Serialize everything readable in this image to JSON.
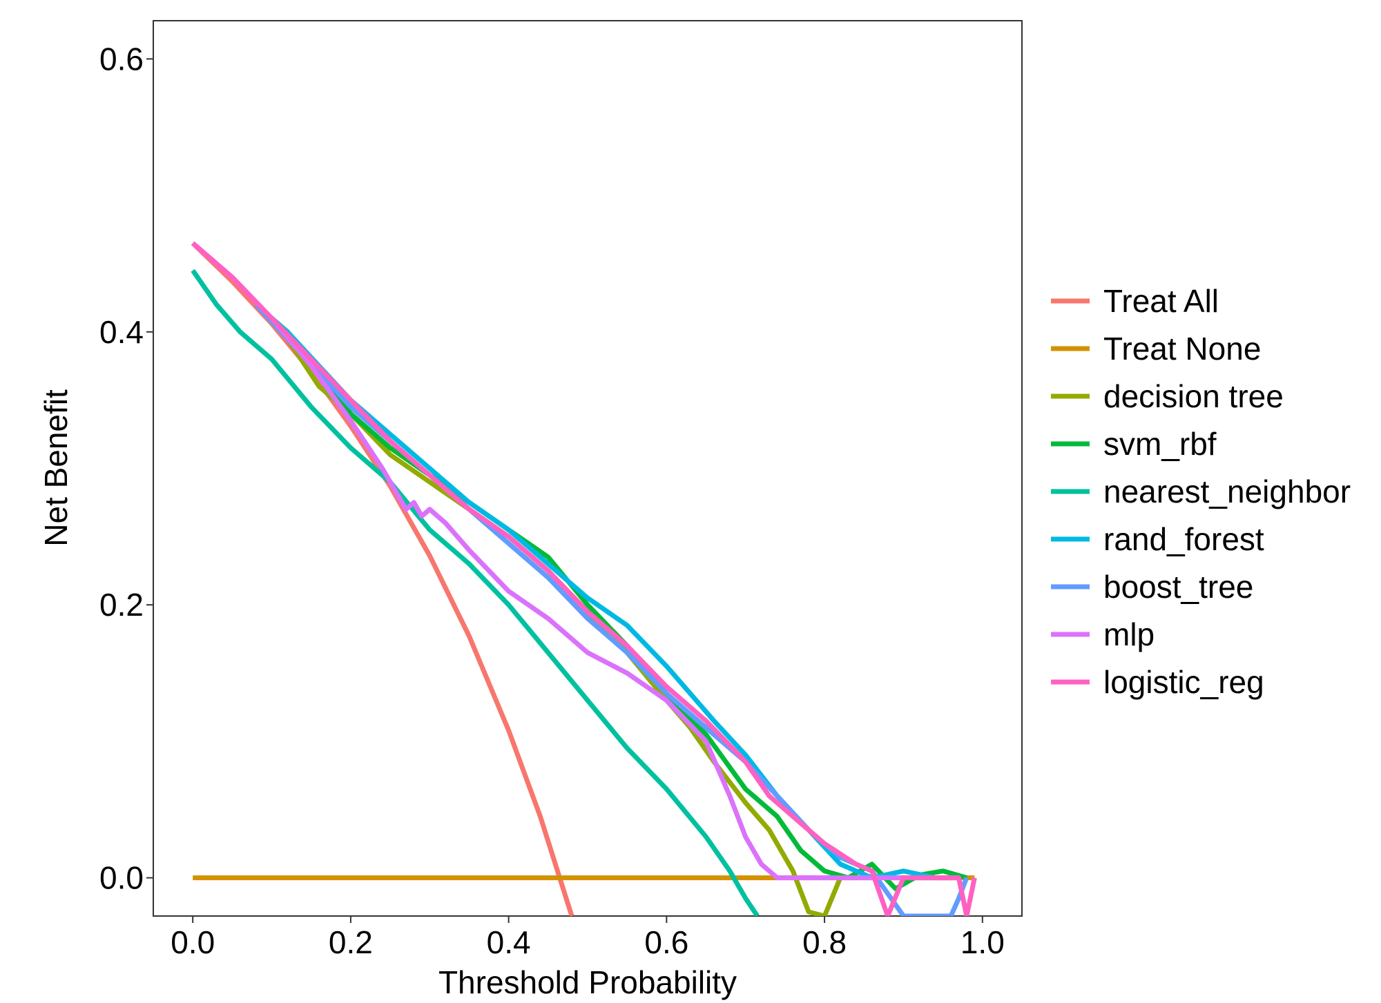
{
  "chart_data": {
    "type": "line",
    "title": "",
    "xlabel": "Threshold Probability",
    "ylabel": "Net Benefit",
    "xlim": [
      -0.05,
      1.05
    ],
    "ylim": [
      -0.028,
      0.628
    ],
    "xticks": [
      0.0,
      0.2,
      0.4,
      0.6,
      0.8,
      1.0
    ],
    "xtick_labels": [
      "0.0",
      "0.2",
      "0.4",
      "0.6",
      "0.8",
      "1.0"
    ],
    "yticks": [
      0.0,
      0.2,
      0.4,
      0.6
    ],
    "ytick_labels": [
      "0.0",
      "0.2",
      "0.4",
      "0.6"
    ],
    "grid": false,
    "legend_position": "right",
    "series": [
      {
        "name": "Treat All",
        "color": "#F8766D",
        "x": [
          0,
          0.05,
          0.1,
          0.15,
          0.2,
          0.25,
          0.3,
          0.35,
          0.4,
          0.44,
          0.48
        ],
        "y": [
          0.465,
          0.437,
          0.406,
          0.371,
          0.331,
          0.287,
          0.236,
          0.177,
          0.108,
          0.045,
          -0.028
        ]
      },
      {
        "name": "Treat None",
        "color": "#D39200",
        "x": [
          0,
          0.99
        ],
        "y": [
          0,
          0
        ]
      },
      {
        "name": "decision tree",
        "color": "#93AA00",
        "x": [
          0.08,
          0.12,
          0.16,
          0.2,
          0.25,
          0.3,
          0.35,
          0.4,
          0.45,
          0.5,
          0.55,
          0.6,
          0.63,
          0.66,
          0.7,
          0.73,
          0.76,
          0.78,
          0.8,
          0.82
        ],
        "y": [
          0.42,
          0.395,
          0.36,
          0.34,
          0.31,
          0.29,
          0.27,
          0.25,
          0.225,
          0.195,
          0.165,
          0.13,
          0.11,
          0.085,
          0.055,
          0.035,
          0.005,
          -0.025,
          -0.028,
          0.0
        ]
      },
      {
        "name": "svm_rbf",
        "color": "#00BA38",
        "x": [
          0.08,
          0.12,
          0.16,
          0.2,
          0.25,
          0.3,
          0.35,
          0.4,
          0.45,
          0.5,
          0.55,
          0.6,
          0.65,
          0.7,
          0.74,
          0.77,
          0.8,
          0.83,
          0.86,
          0.89,
          0.92,
          0.95,
          0.98
        ],
        "y": [
          0.42,
          0.4,
          0.37,
          0.34,
          0.315,
          0.295,
          0.275,
          0.255,
          0.235,
          0.2,
          0.17,
          0.135,
          0.105,
          0.065,
          0.045,
          0.02,
          0.005,
          0.0,
          0.01,
          -0.008,
          0.002,
          0.005,
          0.0
        ]
      },
      {
        "name": "nearest_neighbor",
        "color": "#00C19F",
        "x": [
          0,
          0.03,
          0.06,
          0.1,
          0.15,
          0.2,
          0.25,
          0.3,
          0.35,
          0.4,
          0.45,
          0.5,
          0.55,
          0.6,
          0.65,
          0.68,
          0.7,
          0.715
        ],
        "y": [
          0.445,
          0.42,
          0.4,
          0.38,
          0.345,
          0.315,
          0.29,
          0.255,
          0.23,
          0.2,
          0.165,
          0.13,
          0.095,
          0.065,
          0.03,
          0.005,
          -0.015,
          -0.028
        ]
      },
      {
        "name": "rand_forest",
        "color": "#00B9E3",
        "x": [
          0.08,
          0.12,
          0.16,
          0.2,
          0.25,
          0.3,
          0.35,
          0.4,
          0.45,
          0.5,
          0.55,
          0.6,
          0.63,
          0.66,
          0.7,
          0.74,
          0.78,
          0.82,
          0.86,
          0.9,
          0.94,
          0.96
        ],
        "y": [
          0.42,
          0.4,
          0.375,
          0.35,
          0.325,
          0.3,
          0.275,
          0.255,
          0.23,
          0.205,
          0.185,
          0.155,
          0.135,
          0.115,
          0.09,
          0.06,
          0.035,
          0.01,
          0.0,
          0.005,
          0.0,
          0.0
        ]
      },
      {
        "name": "boost_tree",
        "color": "#619CFF",
        "x": [
          0.08,
          0.12,
          0.16,
          0.2,
          0.25,
          0.3,
          0.35,
          0.4,
          0.45,
          0.5,
          0.55,
          0.6,
          0.65,
          0.7,
          0.74,
          0.78,
          0.82,
          0.86,
          0.9,
          0.94,
          0.96,
          0.97,
          0.98
        ],
        "y": [
          0.42,
          0.395,
          0.37,
          0.345,
          0.32,
          0.295,
          0.27,
          0.245,
          0.22,
          0.19,
          0.165,
          0.135,
          0.11,
          0.085,
          0.06,
          0.035,
          0.015,
          0.005,
          -0.028,
          -0.028,
          -0.028,
          -0.015,
          0.0
        ]
      },
      {
        "name": "mlp",
        "color": "#DB72FB",
        "x": [
          0.0,
          0.05,
          0.1,
          0.15,
          0.2,
          0.24,
          0.27,
          0.28,
          0.29,
          0.3,
          0.32,
          0.35,
          0.4,
          0.45,
          0.5,
          0.55,
          0.6,
          0.65,
          0.68,
          0.7,
          0.72,
          0.74,
          0.8,
          0.9,
          0.97
        ],
        "y": [
          0.465,
          0.44,
          0.41,
          0.375,
          0.335,
          0.3,
          0.27,
          0.275,
          0.265,
          0.27,
          0.26,
          0.24,
          0.21,
          0.19,
          0.165,
          0.15,
          0.13,
          0.1,
          0.06,
          0.03,
          0.01,
          0.0,
          0.0,
          0.0,
          0.0
        ]
      },
      {
        "name": "logistic_reg",
        "color": "#FF61C3",
        "x": [
          0,
          0.05,
          0.1,
          0.15,
          0.2,
          0.25,
          0.3,
          0.35,
          0.4,
          0.45,
          0.5,
          0.55,
          0.6,
          0.65,
          0.7,
          0.73,
          0.76,
          0.8,
          0.84,
          0.86,
          0.88,
          0.9,
          0.94,
          0.97,
          0.98,
          0.99
        ],
        "y": [
          0.465,
          0.44,
          0.41,
          0.38,
          0.35,
          0.32,
          0.295,
          0.27,
          0.25,
          0.225,
          0.195,
          0.17,
          0.14,
          0.115,
          0.085,
          0.06,
          0.045,
          0.025,
          0.01,
          0.005,
          -0.028,
          0.0,
          0.0,
          0.0,
          -0.028,
          0.0
        ]
      }
    ]
  }
}
